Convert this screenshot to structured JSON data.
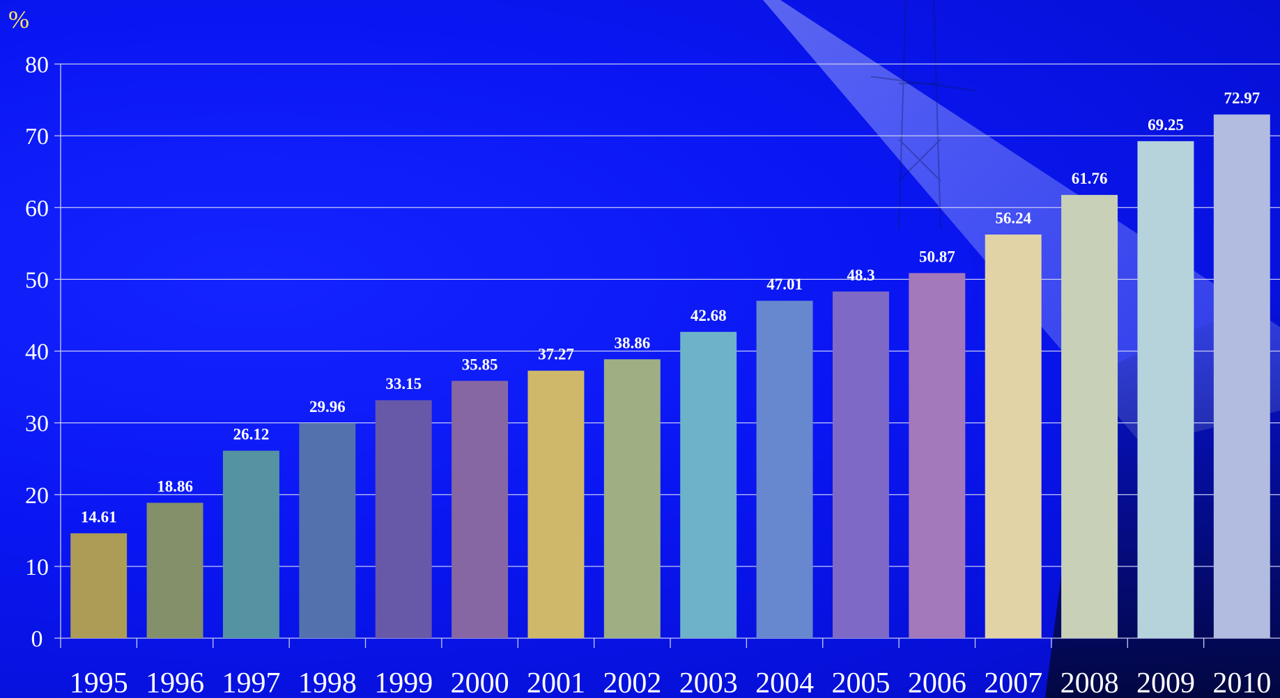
{
  "chart_data": {
    "type": "bar",
    "unit_label": "%",
    "categories": [
      "1995",
      "1996",
      "1997",
      "1998",
      "1999",
      "2000",
      "2001",
      "2002",
      "2003",
      "2004",
      "2005",
      "2006",
      "2007",
      "2008",
      "2009",
      "2010"
    ],
    "values": [
      14.61,
      18.86,
      26.12,
      29.96,
      33.15,
      35.85,
      37.27,
      38.86,
      42.68,
      47.01,
      48.3,
      50.87,
      56.24,
      61.76,
      69.25,
      72.97
    ],
    "value_labels": [
      "14.61",
      "18.86",
      "26.12",
      "29.96",
      "33.15",
      "35.85",
      "37.27",
      "38.86",
      "42.68",
      "47.01",
      "48.3",
      "50.87",
      "56.24",
      "61.76",
      "69.25",
      "72.97"
    ],
    "ylim": [
      0,
      80
    ],
    "yticks": [
      "0",
      "10",
      "20",
      "30",
      "40",
      "50",
      "60",
      "70",
      "80"
    ],
    "grid": true,
    "legend": "none",
    "bar_colors": [
      "#ad9c55",
      "#83906a",
      "#5593a3",
      "#5371ac",
      "#6858a8",
      "#8767a3",
      "#cfb869",
      "#9eb083",
      "#6eb2c9",
      "#6787cf",
      "#7e6ac6",
      "#a479bb",
      "#e2d3a7",
      "#c8d0b8",
      "#b6d3dc",
      "#b1bce0"
    ],
    "colors": {
      "background": "#0a14ee",
      "unit_label": "#ffe566",
      "text": "#ffffff",
      "grid": "#c8ccf5"
    }
  }
}
